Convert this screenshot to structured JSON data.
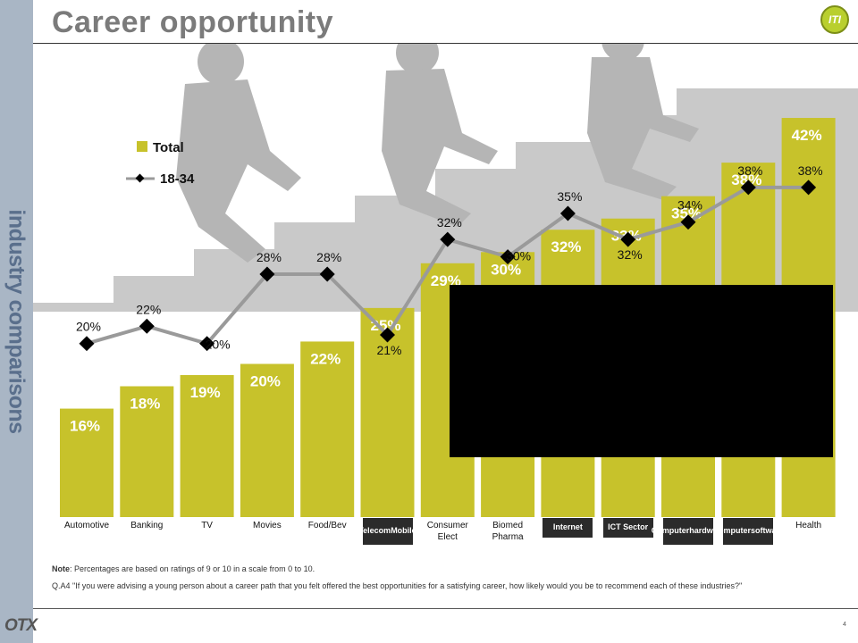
{
  "slide": {
    "title": "Career opportunity",
    "sidebar_label": "industry comparisons",
    "logo_text": "ITI",
    "footer_logo": "OTX",
    "page_number": "4",
    "note_label": "Note",
    "note_text": ": Percentages are based on ratings of 9 or 10 in a scale from 0 to 10.",
    "question_text": "Q.A4 \"If you were advising a young person about a career path that you felt offered the best opportunities for a satisfying career, how likely would you be to recommend each of these industries?\""
  },
  "chart_data": {
    "type": "bar",
    "categories": [
      "Automotive",
      "Banking",
      "TV",
      "Movies",
      "Food/Bev",
      "Telecom Mobile",
      "Consumer Elect",
      "Biomed Pharma",
      "Internet",
      "ICT Sector",
      "Computer hardware",
      "Computer software",
      "Health"
    ],
    "category_labels": [
      {
        "lines": [
          "Automotive"
        ],
        "boxed": false
      },
      {
        "lines": [
          "Banking"
        ],
        "boxed": false
      },
      {
        "lines": [
          "TV"
        ],
        "boxed": false
      },
      {
        "lines": [
          "Movies"
        ],
        "boxed": false
      },
      {
        "lines": [
          "Food/Bev"
        ],
        "boxed": false
      },
      {
        "lines": [
          "Telecom",
          "Mobile"
        ],
        "boxed": true
      },
      {
        "lines": [
          "Consumer",
          "Elect"
        ],
        "boxed": false
      },
      {
        "lines": [
          "Biomed",
          "Pharma"
        ],
        "boxed": false
      },
      {
        "lines": [
          "Internet"
        ],
        "boxed": true
      },
      {
        "lines": [
          "ICT Sector"
        ],
        "boxed": true
      },
      {
        "lines": [
          "Computer",
          "hardware"
        ],
        "boxed": true
      },
      {
        "lines": [
          "Computer",
          "software"
        ],
        "boxed": true
      },
      {
        "lines": [
          "Health"
        ],
        "boxed": false
      }
    ],
    "series": [
      {
        "name": "Total",
        "kind": "bar",
        "color": "#c7c22b",
        "values": [
          16,
          18,
          19,
          20,
          22,
          25,
          29,
          30,
          32,
          33,
          35,
          38,
          42
        ]
      },
      {
        "name": "18-34",
        "kind": "line",
        "color": "#9a9a9a",
        "values": [
          20,
          22,
          20,
          28,
          28,
          21,
          32,
          30,
          35,
          32,
          34,
          38,
          38
        ]
      }
    ],
    "value_suffix": "%",
    "legend_position": "top-left",
    "grid": false
  },
  "colors": {
    "bar": "#c7c22b",
    "bar_label": "#ffffff",
    "line": "#9a9a9a",
    "marker": "#000000",
    "sidebar": "#a9b6c5",
    "title": "#7b7b7b"
  }
}
